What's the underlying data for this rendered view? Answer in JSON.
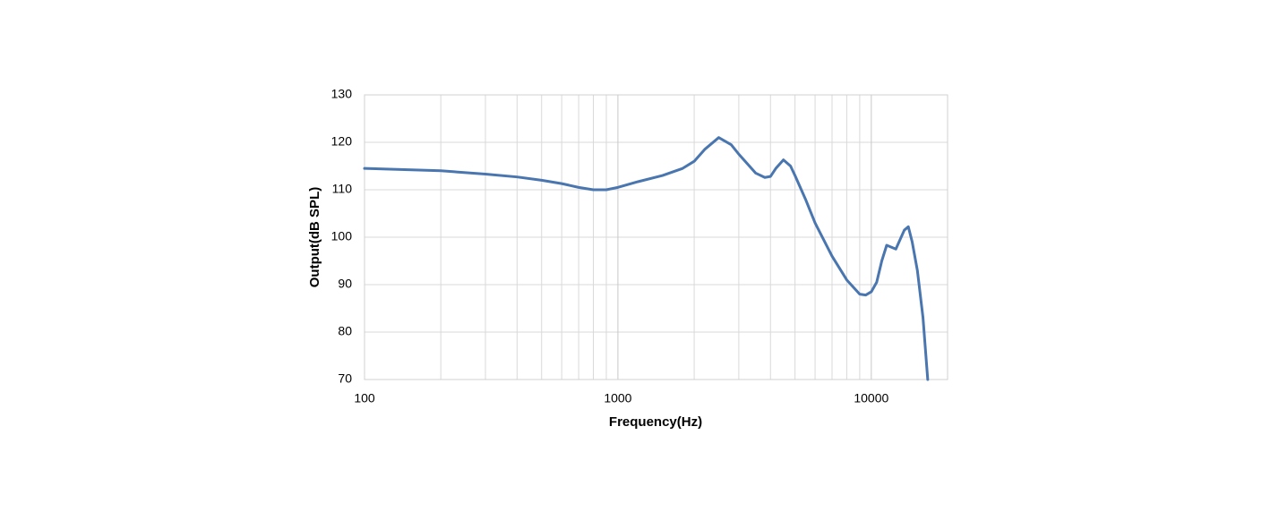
{
  "chart_data": {
    "type": "line",
    "x_label": "Frequency(Hz)",
    "y_label": "Output(dB SPL)",
    "xscale": "log",
    "grid": true,
    "xlim": [
      100,
      20000
    ],
    "ylim": [
      70,
      130
    ],
    "xticks": [
      100,
      1000,
      10000
    ],
    "x_minor_grid": [
      200,
      300,
      400,
      500,
      600,
      700,
      800,
      900,
      2000,
      3000,
      4000,
      5000,
      6000,
      7000,
      8000,
      9000
    ],
    "yticks": [
      70,
      80,
      90,
      100,
      110,
      120,
      130
    ],
    "x": [
      100,
      200,
      300,
      400,
      500,
      600,
      700,
      800,
      900,
      1000,
      1200,
      1500,
      1800,
      2000,
      2200,
      2500,
      2800,
      3000,
      3500,
      3800,
      4000,
      4200,
      4500,
      4800,
      5000,
      5500,
      6000,
      7000,
      8000,
      9000,
      9500,
      10000,
      10500,
      11000,
      11500,
      12500,
      13500,
      14000,
      14500,
      15200,
      16000,
      16700
    ],
    "series": [
      {
        "color": "#4a76b0",
        "values": [
          114.5,
          114.0,
          113.3,
          112.7,
          112.0,
          111.3,
          110.5,
          110.0,
          110.0,
          110.5,
          111.7,
          113.0,
          114.5,
          116.0,
          118.5,
          121.0,
          119.5,
          117.5,
          113.5,
          112.6,
          112.8,
          114.5,
          116.3,
          115.0,
          113.0,
          108.0,
          103.0,
          96.0,
          91.0,
          88.0,
          87.8,
          88.5,
          90.5,
          95.0,
          98.3,
          97.5,
          101.5,
          102.2,
          99.0,
          93.0,
          83.0,
          70.0
        ]
      }
    ]
  }
}
